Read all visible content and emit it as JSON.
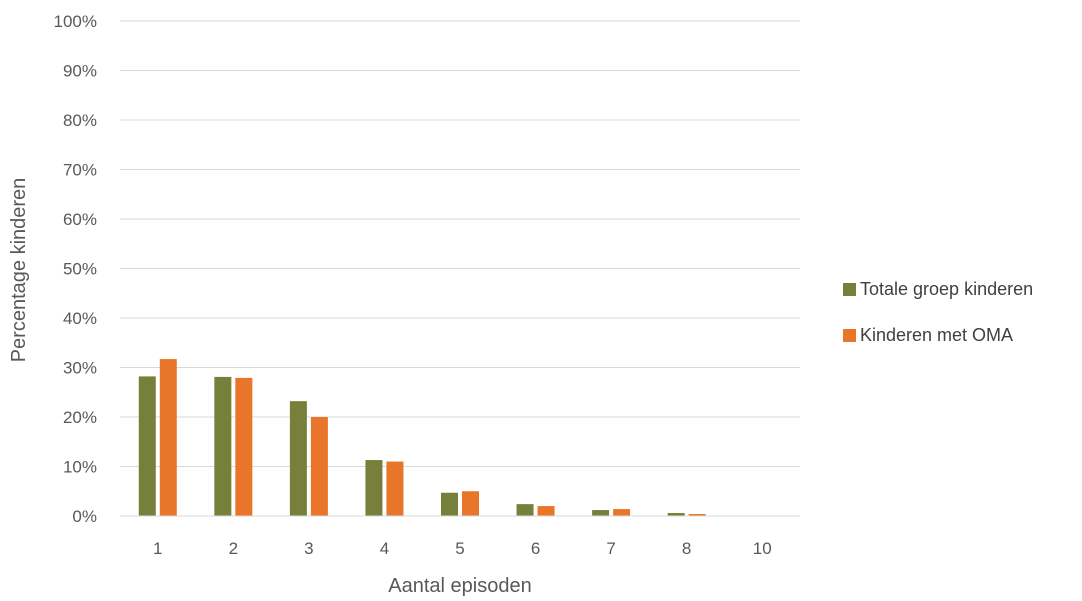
{
  "chart_data": {
    "type": "bar",
    "categories": [
      "1",
      "2",
      "3",
      "4",
      "5",
      "6",
      "7",
      "8",
      "10"
    ],
    "series": [
      {
        "name": "Totale groep kinderen",
        "color": "#77803a",
        "values": [
          28.2,
          28.1,
          23.2,
          11.3,
          4.7,
          2.4,
          1.2,
          0.6,
          0.1
        ]
      },
      {
        "name": "Kinderen met OMA",
        "color": "#e8752a",
        "values": [
          31.7,
          27.9,
          20.0,
          11.0,
          5.0,
          2.0,
          1.4,
          0.4,
          0.0
        ]
      }
    ],
    "xlabel": "Aantal episoden",
    "ylabel": "Percentage kinderen",
    "ylim": [
      0,
      100
    ],
    "yticks": [
      "0%",
      "10%",
      "20%",
      "30%",
      "40%",
      "50%",
      "60%",
      "70%",
      "80%",
      "90%",
      "100%"
    ],
    "grid": true,
    "legend": "right"
  }
}
